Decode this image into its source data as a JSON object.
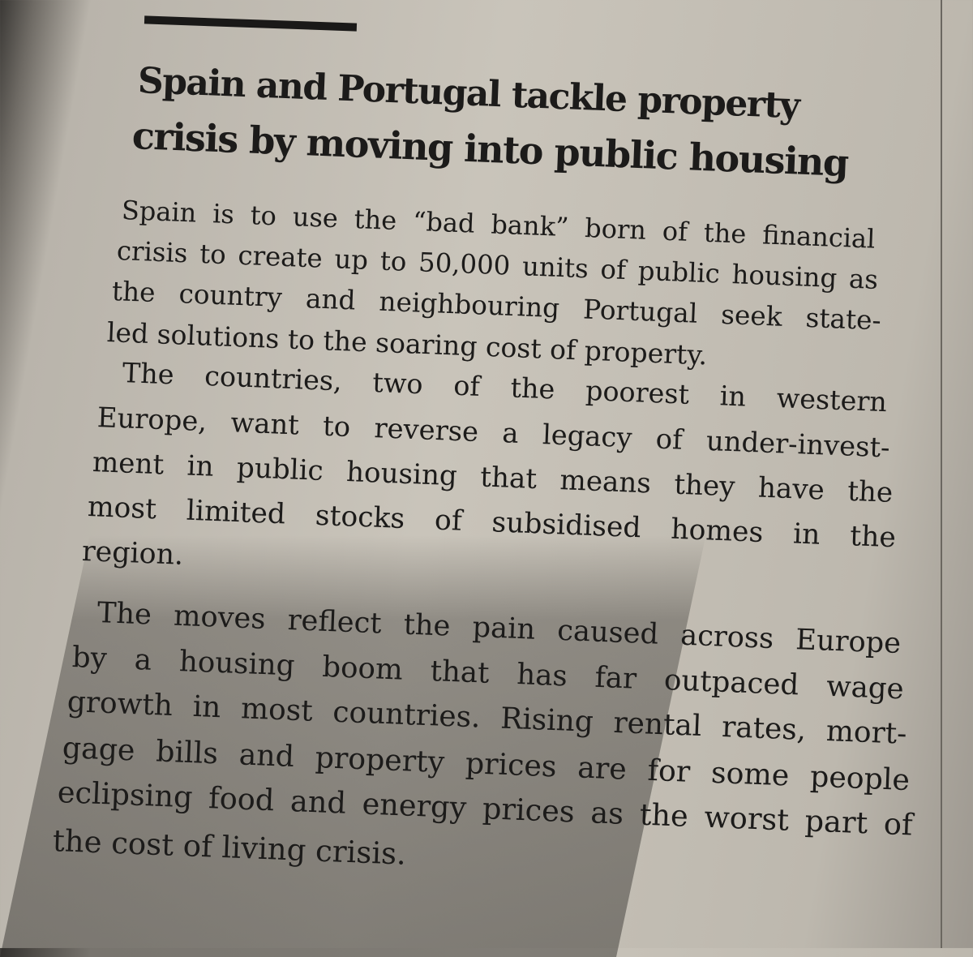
{
  "article": {
    "headline": [
      "Spain and Portugal tackle property",
      "crisis by moving into public housing"
    ],
    "headline_lines": [
      "Spain and Portugal tackle property",
      "crisis by moving into public housing"
    ],
    "paragraphs": [
      [
        "Spain is to use the “bad bank” born of the financial",
        "crisis to create up to 50,000 units of public housing as",
        "the country and neighbouring Portugal seek state-",
        "led solutions to the soaring cost of property."
      ],
      [
        "The countries, two of the poorest in western",
        "Europe, want to reverse a legacy of under-invest-",
        "ment in public housing that means they have the",
        "most limited stocks of subsidised homes in the",
        "region."
      ],
      [
        "The moves reflect the pain caused across Europe",
        "by a housing boom that has far outpaced wage",
        "growth in most countries. Rising rental rates, mort-",
        "gage bills and property prices are for some people",
        "eclipsing food and energy prices as the worst part of",
        "the cost of living crisis."
      ]
    ]
  }
}
